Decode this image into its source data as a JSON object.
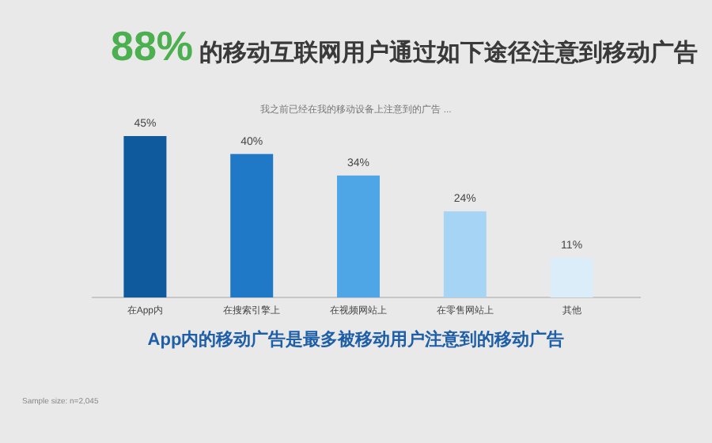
{
  "chart_data": {
    "type": "bar",
    "title": "88%的移动互联网用户通过如下途径注意到移动广告",
    "subtitle": "我之前已经在我的移动设备上注意到的广告 ...",
    "categories": [
      "在App内",
      "在搜索引擎上",
      "在视频网站上",
      "在零售网站上",
      "其他"
    ],
    "values": [
      45,
      40,
      34,
      24,
      11
    ],
    "colors": [
      "#0f5a9c",
      "#2079c7",
      "#4ea6e6",
      "#a6d4f5",
      "#dcedfa"
    ],
    "value_labels": [
      "45%",
      "40%",
      "34%",
      "24%",
      "11%"
    ],
    "annotations": [
      "App内的移动广告是最多被移动用户注意到的移动广告",
      "Sample size: n=2,045"
    ]
  }
}
